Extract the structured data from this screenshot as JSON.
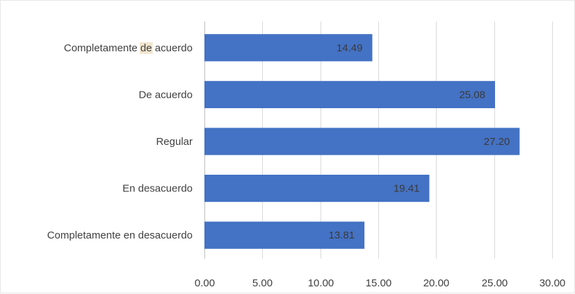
{
  "chart_data": {
    "type": "bar",
    "orientation": "horizontal",
    "title": "",
    "xlabel": "",
    "ylabel": "",
    "categories": [
      "Completamente de acuerdo",
      "De acuerdo",
      "Regular",
      "En desacuerdo",
      "Completamente en desacuerdo"
    ],
    "values": [
      14.49,
      25.08,
      27.2,
      19.41,
      13.81
    ],
    "value_labels": [
      "14.49",
      "25.08",
      "27.20",
      "19.41",
      "13.81"
    ],
    "xlim": [
      0,
      30
    ],
    "xticks": [
      0,
      5,
      10,
      15,
      20,
      25,
      30
    ],
    "xtick_labels": [
      "0.00",
      "5.00",
      "10.00",
      "15.00",
      "20.00",
      "25.00",
      "30.00"
    ],
    "grid": true,
    "legend": "none",
    "bar_color": "#4472c4",
    "highlight_color": "#f3e6cf"
  }
}
